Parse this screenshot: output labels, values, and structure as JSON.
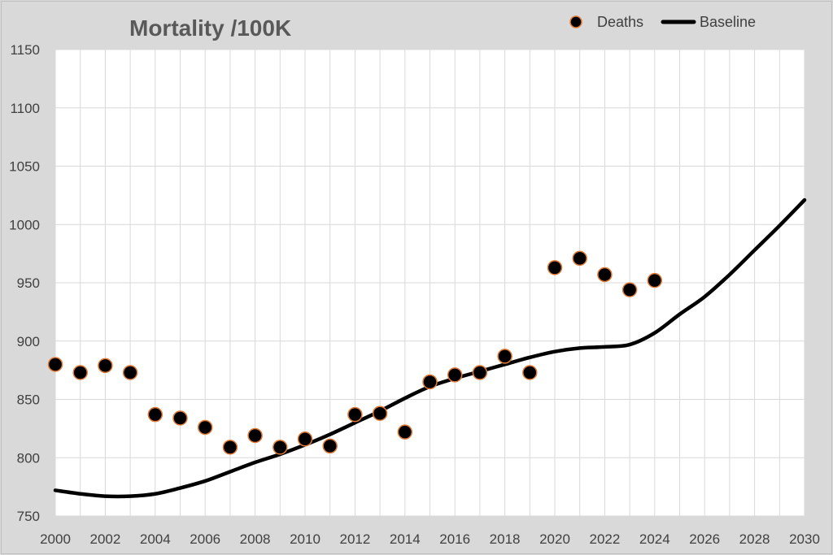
{
  "chart_data": {
    "type": "scatter",
    "title": "Mortality /100K",
    "xlabel": "",
    "ylabel": "",
    "xlim": [
      2000,
      2030
    ],
    "ylim": [
      750,
      1150
    ],
    "x_ticks": [
      "2000",
      "2002",
      "2004",
      "2006",
      "2008",
      "2010",
      "2012",
      "2014",
      "2016",
      "2018",
      "2020",
      "2022",
      "2024",
      "2026",
      "2028",
      "2030"
    ],
    "y_ticks": [
      "750",
      "800",
      "850",
      "900",
      "950",
      "1000",
      "1050",
      "1100",
      "1150"
    ],
    "grid": true,
    "legend_position": "top-right",
    "series": [
      {
        "name": "Deaths",
        "kind": "scatter",
        "color": "#000000",
        "edge_color": "#e07b39",
        "x": [
          2000,
          2001,
          2002,
          2003,
          2004,
          2005,
          2006,
          2007,
          2008,
          2009,
          2010,
          2011,
          2012,
          2013,
          2014,
          2015,
          2016,
          2017,
          2018,
          2019,
          2020,
          2021,
          2022,
          2023,
          2024
        ],
        "y": [
          880,
          873,
          879,
          873,
          837,
          834,
          826,
          809,
          819,
          809,
          816,
          810,
          837,
          838,
          822,
          865,
          871,
          873,
          887,
          873,
          963,
          971,
          957,
          944,
          952
        ]
      },
      {
        "name": "Baseline",
        "kind": "line",
        "color": "#000000",
        "x": [
          2000,
          2001,
          2002,
          2003,
          2004,
          2005,
          2006,
          2007,
          2008,
          2009,
          2010,
          2011,
          2012,
          2013,
          2014,
          2015,
          2016,
          2017,
          2018,
          2019,
          2020,
          2021,
          2022,
          2023,
          2024,
          2025,
          2026,
          2027,
          2028,
          2029,
          2030
        ],
        "y": [
          772,
          769,
          767,
          767,
          769,
          774,
          780,
          788,
          796,
          803,
          811,
          820,
          830,
          840,
          851,
          861,
          868,
          874,
          880,
          886,
          891,
          894,
          895,
          897,
          907,
          923,
          938,
          957,
          978,
          999,
          1021
        ]
      }
    ]
  }
}
